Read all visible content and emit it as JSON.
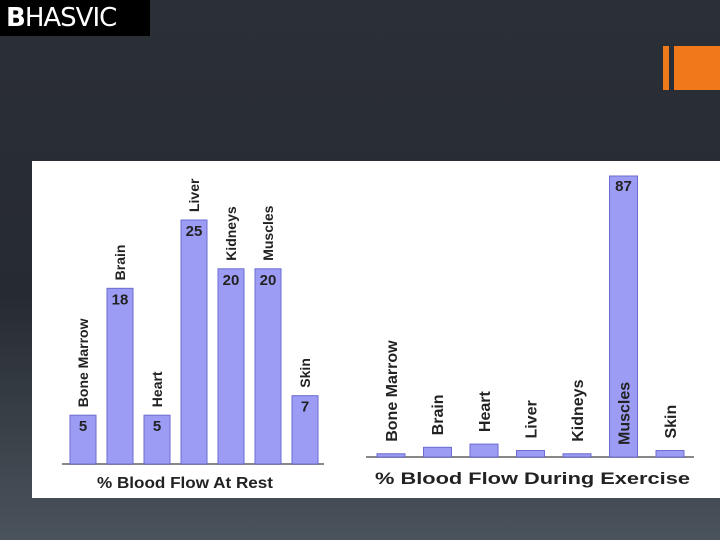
{
  "logo": {
    "b": "B",
    "rest": "HASVIC"
  },
  "colors": {
    "accent": "#f07a1a",
    "bar": "#9c9cf5"
  },
  "chart_data": [
    {
      "type": "bar",
      "title": "% Blood Flow At Rest",
      "categories": [
        "Bone Marrow",
        "Brain",
        "Heart",
        "Liver",
        "Kidneys",
        "Muscles",
        "Skin"
      ],
      "values": [
        5,
        18,
        5,
        25,
        20,
        20,
        7
      ],
      "value_labels": [
        "5",
        "18",
        "5",
        "25",
        "20",
        "20",
        "7"
      ]
    },
    {
      "type": "bar",
      "title": "% Blood Flow During Exercise",
      "categories": [
        "Bone Marrow",
        "Brain",
        "Heart",
        "Liver",
        "Kidneys",
        "Muscles",
        "Skin"
      ],
      "values": [
        1,
        3,
        4,
        2,
        1,
        87,
        2
      ],
      "value_labels": [
        "",
        "",
        "",
        "",
        "",
        "87",
        ""
      ]
    }
  ]
}
